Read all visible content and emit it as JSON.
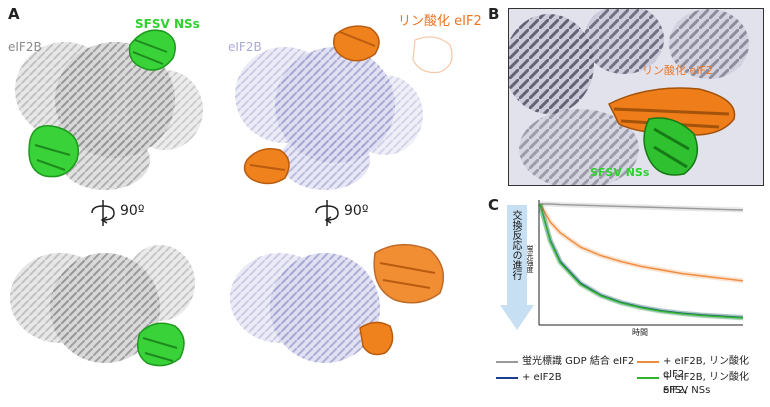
{
  "panel_labels": {
    "a": "A",
    "b": "B",
    "c": "C"
  },
  "labels": {
    "eif2b_left": "eIF2B",
    "sfsv_nss": "SFSV NSs",
    "eif2b_right": "eIF2B",
    "phospho_eif2": "リン酸化 eIF2",
    "b_phospho_eif2": "リン酸化 eIF2",
    "b_sfsv": "SFSV NSs",
    "rotation_left": "90º",
    "rotation_right": "90º"
  },
  "chart_axes": {
    "arrow_label": "交換反応の進行",
    "y_label": "蛍光強度",
    "x_label": "時間"
  },
  "legend": [
    {
      "label": "蛍光標識 GDP 結合 eIF2",
      "color": "#9a9a9a"
    },
    {
      "label": "+ eIF2B, リン酸化 eIF2",
      "color": "#f08a3c"
    },
    {
      "label": "+ eIF2B",
      "color": "#1f3d8f"
    },
    {
      "label": "+ eIF2B, リン酸化 eIF2,",
      "label2": "SFSV NSs",
      "color": "#2db52d"
    }
  ],
  "chart_data": {
    "type": "line",
    "x": [
      0,
      0.05,
      0.1,
      0.2,
      0.3,
      0.4,
      0.5,
      0.6,
      0.7,
      0.8,
      0.9,
      1.0
    ],
    "series": [
      {
        "color": "#9a9a9a",
        "values": [
          1.0,
          1.0,
          0.995,
          0.99,
          0.985,
          0.98,
          0.975,
          0.97,
          0.965,
          0.96,
          0.955,
          0.95
        ]
      },
      {
        "color": "#f08a3c",
        "values": [
          1.0,
          0.85,
          0.76,
          0.64,
          0.57,
          0.52,
          0.48,
          0.45,
          0.42,
          0.4,
          0.38,
          0.36
        ]
      },
      {
        "color": "#1f3d8f",
        "values": [
          1.0,
          0.7,
          0.52,
          0.34,
          0.24,
          0.18,
          0.14,
          0.11,
          0.09,
          0.075,
          0.065,
          0.055
        ]
      },
      {
        "color": "#2db52d",
        "values": [
          1.0,
          0.69,
          0.51,
          0.33,
          0.235,
          0.175,
          0.135,
          0.105,
          0.085,
          0.07,
          0.06,
          0.05
        ]
      }
    ],
    "xlabel": "時間",
    "ylabel": "蛍光強度",
    "xlim": [
      0,
      1
    ],
    "ylim": [
      0,
      1
    ],
    "grid": false
  }
}
